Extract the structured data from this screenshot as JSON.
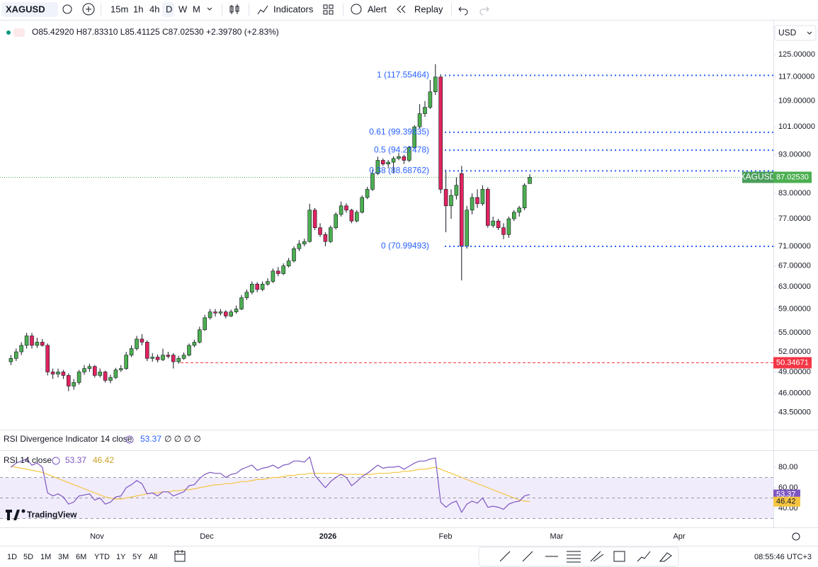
{
  "toolbar": {
    "symbol": "XAGUSD",
    "intervals": [
      "15m",
      "1h",
      "4h",
      "D",
      "W",
      "M"
    ],
    "indicators": "Indicators",
    "alert": "Alert",
    "replay": "Replay"
  },
  "legend": {
    "open": "O85.42920",
    "high": "H87.83310",
    "low": "L85.41125",
    "close": "C87.02530",
    "change": "+2.39780 (+2.83%)"
  },
  "currency": "USD",
  "chart": {
    "type": "candlestick",
    "log_scale": true,
    "ylim": [
      41.5,
      136.5
    ],
    "up_color": "#4caf50",
    "down_color": "#e0245e",
    "yticks": [
      {
        "value": 125,
        "label": "125.00000"
      },
      {
        "value": 117,
        "label": "117.00000"
      },
      {
        "value": 109,
        "label": "109.00000"
      },
      {
        "value": 101,
        "label": "101.00000"
      },
      {
        "value": 93,
        "label": "93.00000"
      },
      {
        "value": 83,
        "label": "83.00000"
      },
      {
        "value": 77,
        "label": "77.00000"
      },
      {
        "value": 71,
        "label": "71.00000"
      },
      {
        "value": 67,
        "label": "67.00000"
      },
      {
        "value": 63,
        "label": "63.00000"
      },
      {
        "value": 59,
        "label": "59.00000"
      },
      {
        "value": 55,
        "label": "55.00000"
      },
      {
        "value": 52,
        "label": "52.00000"
      },
      {
        "value": 49,
        "label": "49.00000"
      },
      {
        "value": 46,
        "label": "46.00000"
      },
      {
        "value": 43.5,
        "label": "43.50000"
      }
    ],
    "candles": [
      [
        50.5,
        51.5,
        50,
        51
      ],
      [
        51,
        52.5,
        50.6,
        52
      ],
      [
        52,
        53.5,
        51.5,
        53
      ],
      [
        53,
        55,
        52.5,
        54.5
      ],
      [
        54.5,
        55,
        52.5,
        53
      ],
      [
        53,
        54.2,
        52.6,
        53.5
      ],
      [
        53.5,
        54,
        52.8,
        53
      ],
      [
        53,
        53.3,
        48.5,
        49
      ],
      [
        49,
        49.5,
        48,
        48.7
      ],
      [
        48.7,
        49.5,
        48.2,
        49
      ],
      [
        49,
        49.3,
        48,
        48.5
      ],
      [
        48.5,
        48.8,
        46.3,
        47
      ],
      [
        47,
        48,
        46.5,
        47.5
      ],
      [
        47.5,
        49.3,
        47.2,
        49
      ],
      [
        49,
        50,
        48.6,
        49.5
      ],
      [
        49.5,
        50.2,
        49,
        49.8
      ],
      [
        49.8,
        50,
        48.2,
        48.5
      ],
      [
        48.5,
        49.5,
        48.2,
        49
      ],
      [
        49,
        49.2,
        47.5,
        47.8
      ],
      [
        47.8,
        48.6,
        47.4,
        48.2
      ],
      [
        48.2,
        49.6,
        48,
        49.3
      ],
      [
        49.3,
        50,
        49,
        49.5
      ],
      [
        49.5,
        52,
        49.3,
        51.5
      ],
      [
        51.5,
        53,
        51.2,
        52.5
      ],
      [
        52.5,
        54.5,
        52.2,
        54
      ],
      [
        54,
        54.8,
        53,
        53.5
      ],
      [
        53.5,
        53.8,
        50.6,
        51
      ],
      [
        51,
        51.8,
        50.5,
        51.2
      ],
      [
        51.2,
        51.6,
        50.4,
        50.8
      ],
      [
        50.8,
        52.5,
        50.6,
        51.5
      ],
      [
        51.5,
        52,
        51,
        51.3
      ],
      [
        51.5,
        51.8,
        49.5,
        50.5
      ],
      [
        50.5,
        51.4,
        50.2,
        51
      ],
      [
        51,
        51.9,
        50.8,
        51.5
      ],
      [
        51.5,
        53.3,
        51.3,
        53
      ],
      [
        53,
        53.9,
        52.7,
        53.5
      ],
      [
        53.5,
        56,
        53.3,
        55.5
      ],
      [
        55.5,
        58,
        55.3,
        57.5
      ],
      [
        57.5,
        59,
        57.2,
        58.5
      ],
      [
        58.5,
        59,
        57.7,
        58.3
      ],
      [
        58.3,
        59,
        57.9,
        58.5
      ],
      [
        58.5,
        58.8,
        57.4,
        57.8
      ],
      [
        57.8,
        58.9,
        57.6,
        58.5
      ],
      [
        58.5,
        59.6,
        58.2,
        59
      ],
      [
        59,
        61.5,
        58.8,
        61
      ],
      [
        61,
        62.5,
        60.6,
        62
      ],
      [
        62,
        64,
        61.6,
        63.5
      ],
      [
        63.5,
        63.9,
        62,
        62.5
      ],
      [
        62.5,
        64,
        62.2,
        63.5
      ],
      [
        63.5,
        64.6,
        63.2,
        64
      ],
      [
        64,
        66.5,
        63.7,
        66
      ],
      [
        66,
        66.8,
        65,
        65.5
      ],
      [
        65.5,
        67.5,
        65.2,
        67
      ],
      [
        67,
        68.6,
        66.7,
        68
      ],
      [
        68,
        71,
        67.7,
        70.5
      ],
      [
        70.5,
        72.3,
        70,
        71.5
      ],
      [
        71.5,
        72.6,
        71,
        72
      ],
      [
        72,
        80.5,
        71.8,
        79
      ],
      [
        79,
        79.5,
        74.5,
        75
      ],
      [
        75,
        76,
        73,
        73.5
      ],
      [
        73.5,
        74,
        71,
        72
      ],
      [
        72,
        75.5,
        71.7,
        75
      ],
      [
        75,
        78.5,
        74.6,
        78
      ],
      [
        78,
        81,
        77.5,
        80
      ],
      [
        80,
        80.6,
        78.4,
        79
      ],
      [
        79,
        79.3,
        76,
        76.5
      ],
      [
        76.5,
        79,
        76.2,
        78.5
      ],
      [
        78.5,
        82.5,
        78.2,
        82
      ],
      [
        82,
        84.6,
        81.6,
        84
      ],
      [
        84,
        89,
        83.6,
        88
      ],
      [
        88,
        92.5,
        87.6,
        91.5
      ],
      [
        91.5,
        92,
        90,
        90.5
      ],
      [
        90.5,
        91.6,
        89.4,
        91
      ],
      [
        91,
        92.6,
        88,
        92
      ],
      [
        92,
        93.5,
        91.5,
        92.5
      ],
      [
        92.5,
        93,
        90.5,
        91.5
      ],
      [
        91.5,
        95.5,
        91,
        95
      ],
      [
        95,
        101.5,
        94.6,
        101
      ],
      [
        101,
        108,
        100.5,
        105
      ],
      [
        105,
        109,
        104,
        107
      ],
      [
        107,
        116,
        106.5,
        112
      ],
      [
        112,
        121.5,
        111,
        117
      ],
      [
        117,
        118,
        83,
        84
      ],
      [
        84,
        89,
        74,
        80
      ],
      [
        80,
        84,
        77,
        82.5
      ],
      [
        82.5,
        87,
        81.5,
        85
      ],
      [
        88,
        90,
        64.2,
        71
      ],
      [
        71,
        80,
        70.5,
        79
      ],
      [
        79,
        83,
        78,
        82
      ],
      [
        82,
        84,
        79.5,
        80.5
      ],
      [
        80.5,
        85,
        80,
        84
      ],
      [
        84,
        84.5,
        75,
        75.5
      ],
      [
        75.5,
        77.5,
        75,
        76.5
      ],
      [
        76.5,
        77,
        74.5,
        75
      ],
      [
        75,
        76,
        72.5,
        73.5
      ],
      [
        73.5,
        77.5,
        72.8,
        77
      ],
      [
        77,
        79,
        76.5,
        78.5
      ],
      [
        78.5,
        80,
        77.5,
        79.5
      ],
      [
        79.5,
        85.5,
        79,
        85
      ],
      [
        85.4292,
        87.8331,
        85.41125,
        87.0253
      ]
    ],
    "fib_color": "#2962ff",
    "fib_levels": [
      {
        "value": 117.55464,
        "label": "1 (117.55464)"
      },
      {
        "value": 99.39635,
        "label": "0.61 (99.39635)"
      },
      {
        "value": 94.27478,
        "label": "0.5 (94.27478)"
      },
      {
        "value": 88.68762,
        "label": "0.38 (88.68762)"
      },
      {
        "value": 70.99493,
        "label": "0 (70.99493)"
      }
    ],
    "horizontal_line": {
      "value": 50.34671,
      "label": "50.34671",
      "color": "#f23645"
    },
    "last_price": {
      "symbol": "XAGUSD",
      "value": 87.0253,
      "label": "87.02530",
      "color": "#4caf50"
    }
  },
  "divergence": {
    "title": "RSI Divergence Indicator 14 close",
    "value": "53.37",
    "extra": "∅ ∅ ∅ ∅"
  },
  "rsi": {
    "title": "RSI 14 close",
    "value_label": "53.37",
    "ma_label": "46.42",
    "color": "#7e57c2",
    "ma_color": "#f5c542",
    "ylim": [
      21.4,
      93.8
    ],
    "levels": [
      70,
      50,
      30
    ],
    "yticks": [
      {
        "value": 80,
        "label": "80.00"
      },
      {
        "value": 60,
        "label": "60.00"
      },
      {
        "value": 40,
        "label": "40.00"
      }
    ],
    "values": [
      80,
      84,
      86,
      88,
      82,
      84,
      80,
      55,
      52,
      54,
      51,
      44,
      46,
      52,
      53,
      54,
      48,
      50,
      44,
      46,
      51,
      52,
      60,
      63,
      67,
      64,
      54,
      55,
      52,
      56,
      56,
      52,
      54,
      56,
      62,
      63,
      69,
      73,
      75,
      74,
      74,
      70,
      73,
      74,
      78,
      80,
      82,
      77,
      79,
      80,
      82,
      79,
      82,
      83,
      86,
      86,
      85,
      90,
      72,
      66,
      60,
      66,
      70,
      73,
      70,
      62,
      66,
      71,
      74,
      78,
      82,
      79,
      80,
      80,
      81,
      78,
      81,
      84,
      86,
      86,
      88,
      89,
      46,
      41,
      45,
      47,
      36,
      44,
      47,
      45,
      50,
      41,
      42,
      41,
      39,
      44,
      46,
      47,
      52,
      53.37
    ],
    "ma": [
      81,
      80,
      79,
      78,
      77,
      76,
      75,
      73,
      71,
      69,
      67,
      65,
      63,
      61,
      59,
      57,
      55,
      53,
      51,
      50,
      49,
      49,
      50,
      51,
      52,
      53,
      54,
      55,
      55,
      56,
      56,
      57,
      57,
      58,
      58,
      59,
      60,
      61,
      62,
      63,
      63,
      64,
      64,
      65,
      66,
      66,
      67,
      68,
      68,
      69,
      70,
      70,
      71,
      72,
      72,
      73,
      73,
      74,
      74,
      74,
      74,
      74,
      74,
      73,
      73,
      73,
      73,
      73,
      73,
      73,
      74,
      74,
      74,
      75,
      75,
      76,
      76,
      77,
      78,
      78,
      79,
      80,
      78,
      76,
      74,
      72,
      70,
      68,
      66,
      64,
      62,
      60,
      58,
      56,
      54,
      52,
      50,
      48,
      47,
      46.42
    ]
  },
  "brand": "TradingView",
  "time_axis": [
    "Nov",
    "Dec",
    "2026",
    "Feb",
    "Mar",
    "Apr"
  ],
  "bottom_bar": {
    "ranges": [
      "1D",
      "5D",
      "1M",
      "3M",
      "6M",
      "YTD",
      "1Y",
      "5Y",
      "All"
    ],
    "clock": "08:55:46 UTC+3"
  }
}
